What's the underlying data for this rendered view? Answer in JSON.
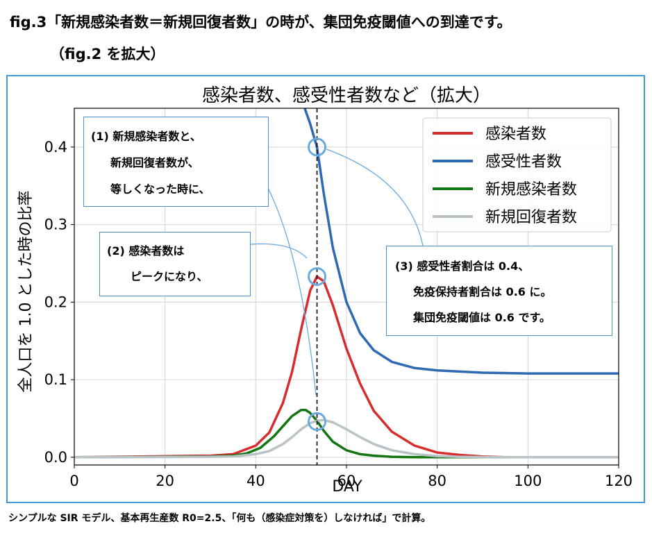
{
  "header": {
    "line1": "fig.3「新規感染者数＝新規回復者数」の時が、集団免疫閾値への到達です。",
    "line2": "（fig.2 を拡大）"
  },
  "caption": "シンプルな SIR モデル、基本再生産数 R0=2.5、「何も（感染症対策を）しなければ」で計算。",
  "annotations": {
    "note1": [
      "(1) 新規感染者数と、",
      "新規回復者数が、",
      "等しくなった時に、"
    ],
    "note2": [
      "(2) 感染者数は",
      "ピークになり、"
    ],
    "note3": [
      "(3) 感受性者割合は 0.4、",
      "免疫保持者割合は 0.6 に。",
      "集団免疫閾値は 0.6 です。"
    ]
  },
  "colors": {
    "infected": "#d62e2e",
    "susceptible": "#2f68b3",
    "new_infections": "#127512",
    "new_recoveries": "#b9c2c7",
    "frame": "#3e9ad6",
    "marker": "#6aa9dc"
  },
  "chart_data": {
    "type": "line",
    "title": "感染者数、感受性者数など（拡大）",
    "xlabel": "DAY",
    "ylabel": "全人口を 1.0 とした時の比率",
    "xlim": [
      0,
      120
    ],
    "ylim": [
      -0.01,
      0.45
    ],
    "xticks": [
      0,
      20,
      40,
      60,
      80,
      100,
      120
    ],
    "yticks": [
      0.0,
      0.1,
      0.2,
      0.3,
      0.4
    ],
    "ytick_labels": [
      "0.0",
      "0.1",
      "0.2",
      "0.3",
      "0.4"
    ],
    "grid": true,
    "legend": "top-right",
    "vline_x": 53.5,
    "markers": [
      {
        "x": 53.5,
        "y": 0.4
      },
      {
        "x": 53.5,
        "y": 0.233
      },
      {
        "x": 53.5,
        "y": 0.046
      }
    ],
    "series": [
      {
        "name": "感染者数",
        "color": "#d62e2e",
        "x": [
          0,
          30,
          35,
          40,
          43,
          46,
          48,
          50,
          52,
          53.5,
          55,
          57,
          60,
          63,
          66,
          70,
          75,
          80,
          85,
          90,
          95,
          100,
          120
        ],
        "y": [
          0.0,
          0.002,
          0.004,
          0.015,
          0.032,
          0.07,
          0.11,
          0.165,
          0.215,
          0.233,
          0.227,
          0.196,
          0.14,
          0.095,
          0.06,
          0.033,
          0.015,
          0.006,
          0.003,
          0.001,
          0.0,
          0.0,
          0.0
        ]
      },
      {
        "name": "感受性者数",
        "color": "#2f68b3",
        "x": [
          50.8,
          52,
          53.5,
          55,
          57,
          60,
          63,
          66,
          70,
          75,
          80,
          90,
          100,
          120
        ],
        "y": [
          0.45,
          0.43,
          0.4,
          0.34,
          0.27,
          0.2,
          0.16,
          0.138,
          0.123,
          0.115,
          0.112,
          0.109,
          0.108,
          0.108
        ]
      },
      {
        "name": "新規感染者数",
        "color": "#127512",
        "x": [
          0,
          30,
          35,
          38,
          41,
          44,
          46,
          48,
          50,
          51,
          52,
          53.5,
          55,
          57,
          60,
          63,
          66,
          70,
          75,
          80,
          120
        ],
        "y": [
          0.0,
          0.001,
          0.002,
          0.005,
          0.012,
          0.027,
          0.04,
          0.053,
          0.061,
          0.061,
          0.057,
          0.047,
          0.034,
          0.02,
          0.009,
          0.004,
          0.002,
          0.0005,
          0.0,
          0.0,
          0.0
        ]
      },
      {
        "name": "新規回復者数",
        "color": "#b9c2c7",
        "x": [
          0,
          30,
          35,
          40,
          43,
          46,
          48,
          50,
          52,
          53.5,
          55,
          57,
          60,
          63,
          66,
          70,
          75,
          80,
          85,
          90,
          100,
          120
        ],
        "y": [
          0.0,
          0.0005,
          0.001,
          0.004,
          0.008,
          0.017,
          0.026,
          0.036,
          0.044,
          0.047,
          0.048,
          0.045,
          0.036,
          0.026,
          0.017,
          0.009,
          0.004,
          0.0015,
          0.0006,
          0.0002,
          0.0,
          0.0
        ]
      }
    ]
  }
}
